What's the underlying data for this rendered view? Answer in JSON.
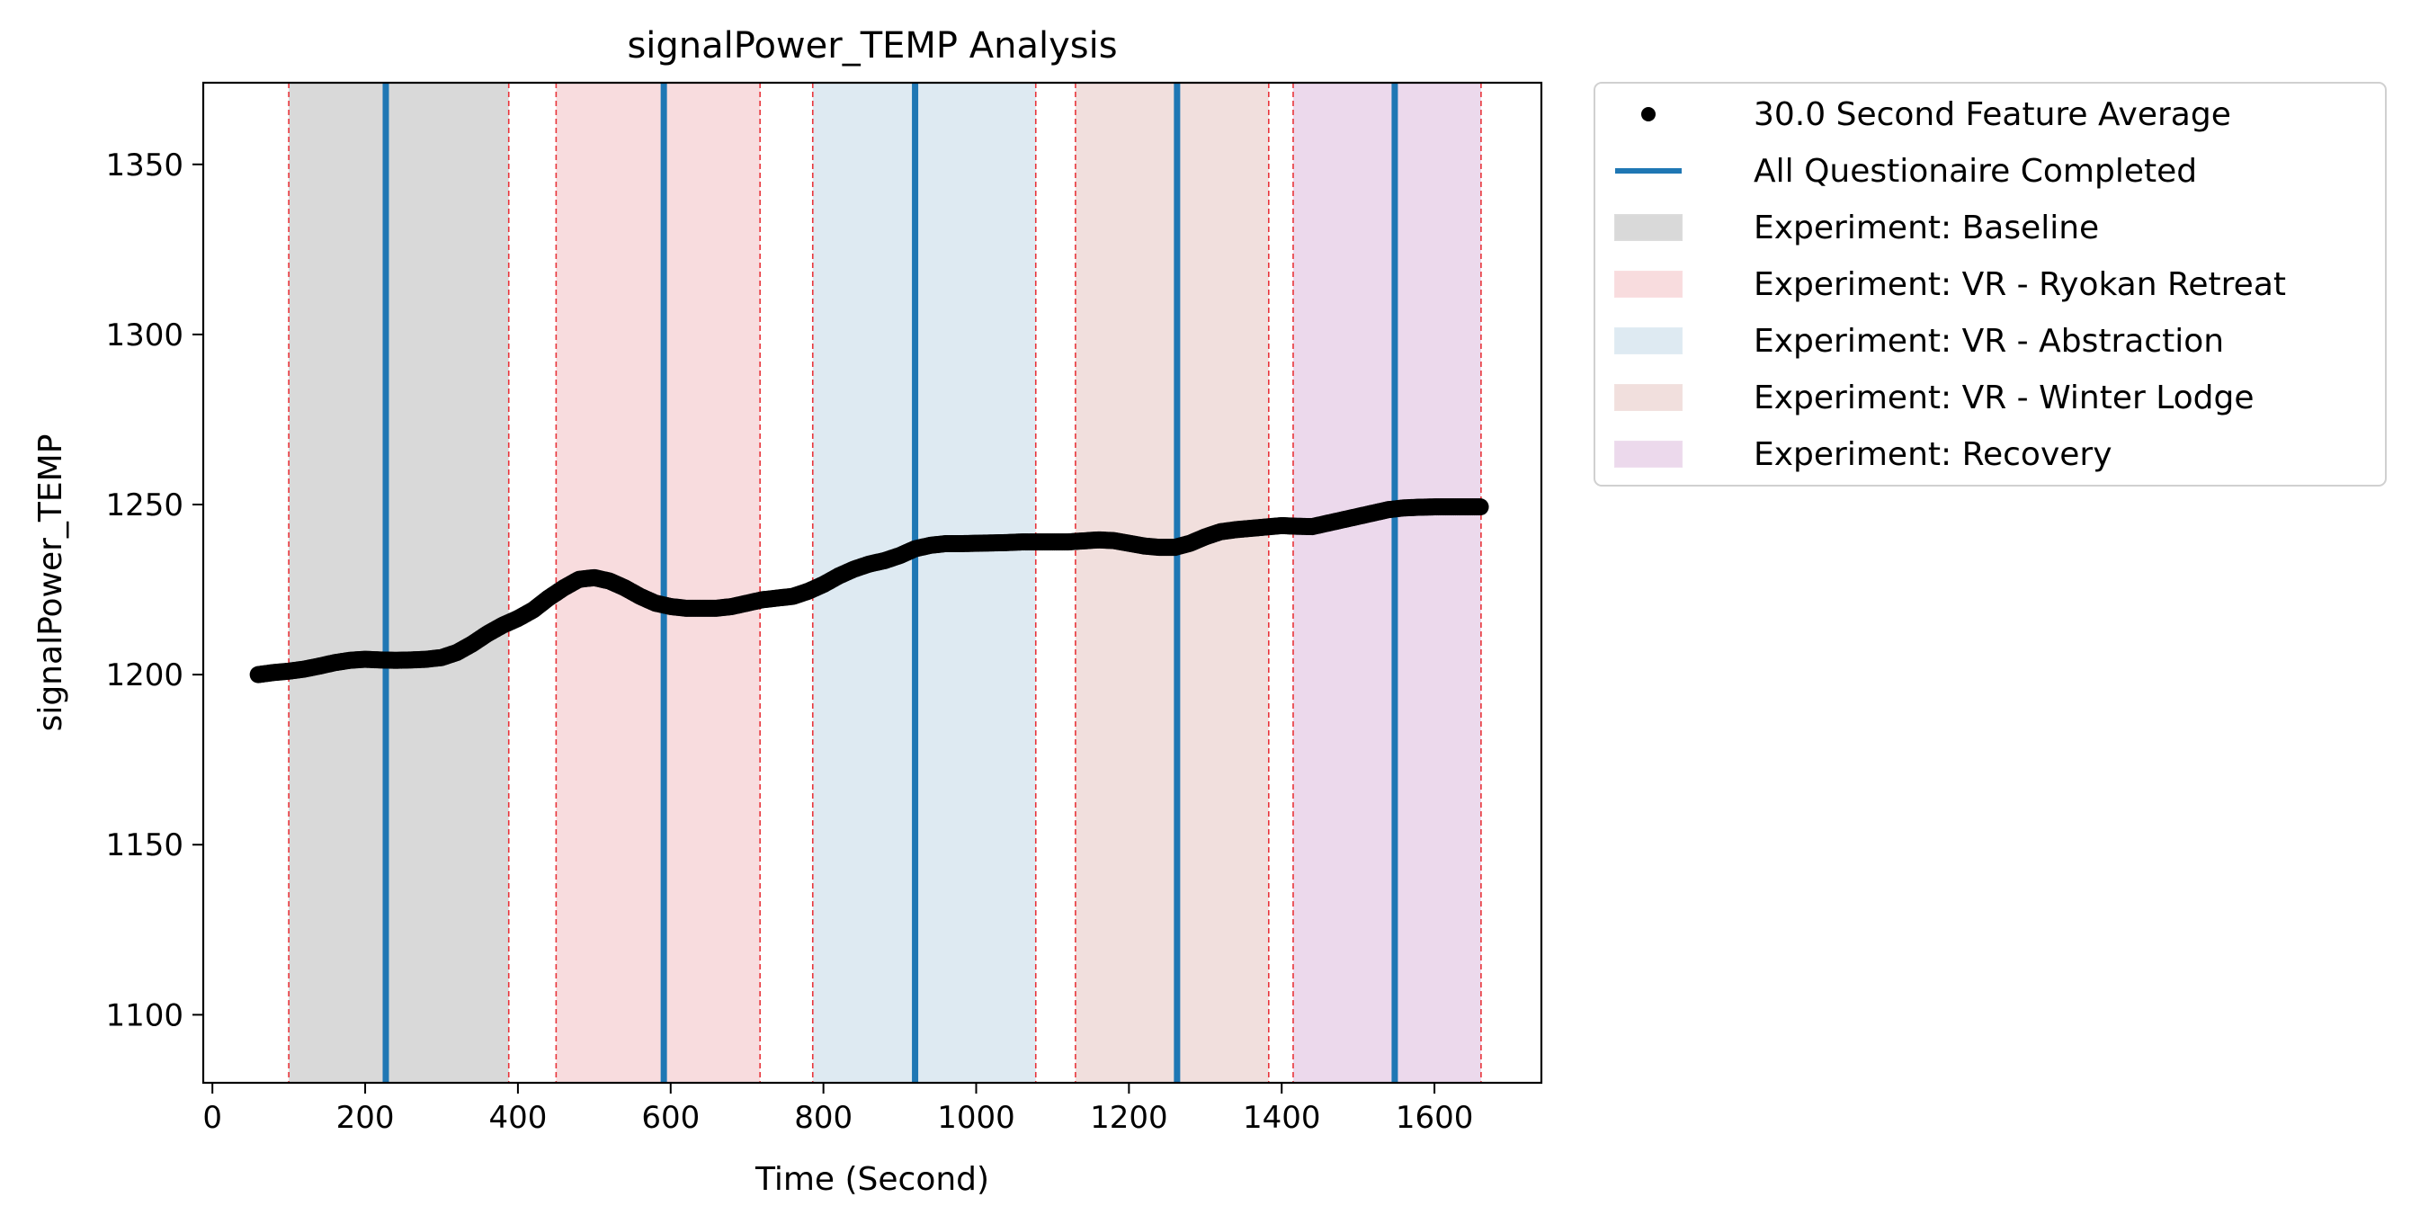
{
  "chart_data": {
    "type": "scatter",
    "title": "signalPower_TEMP Analysis",
    "xlabel": "Time (Second)",
    "ylabel": "signalPower_TEMP",
    "xlim": [
      -12,
      1740
    ],
    "ylim": [
      1080,
      1374
    ],
    "x_ticks": [
      0,
      200,
      400,
      600,
      800,
      1000,
      1200,
      1400,
      1600
    ],
    "y_ticks": [
      1100,
      1150,
      1200,
      1250,
      1300,
      1350
    ],
    "grid": false,
    "legend_position": "outside-right",
    "series": [
      {
        "name": "30.0 Second Feature Average",
        "kind": "markers",
        "color": "#000000",
        "points": [
          [
            60,
            1200
          ],
          [
            80,
            1200.6
          ],
          [
            100,
            1201
          ],
          [
            120,
            1201.6
          ],
          [
            140,
            1202.5
          ],
          [
            160,
            1203.5
          ],
          [
            180,
            1204.2
          ],
          [
            200,
            1204.5
          ],
          [
            220,
            1204.3
          ],
          [
            240,
            1204.2
          ],
          [
            260,
            1204.3
          ],
          [
            280,
            1204.5
          ],
          [
            300,
            1205
          ],
          [
            320,
            1206.5
          ],
          [
            340,
            1209
          ],
          [
            360,
            1212
          ],
          [
            380,
            1214.5
          ],
          [
            400,
            1216.5
          ],
          [
            420,
            1219
          ],
          [
            440,
            1222.5
          ],
          [
            460,
            1225.5
          ],
          [
            480,
            1228
          ],
          [
            500,
            1228.5
          ],
          [
            520,
            1227.5
          ],
          [
            540,
            1225.5
          ],
          [
            560,
            1223
          ],
          [
            580,
            1221
          ],
          [
            600,
            1220
          ],
          [
            620,
            1219.5
          ],
          [
            640,
            1219.5
          ],
          [
            660,
            1219.5
          ],
          [
            680,
            1220
          ],
          [
            700,
            1221
          ],
          [
            720,
            1222
          ],
          [
            740,
            1222.5
          ],
          [
            760,
            1223
          ],
          [
            780,
            1224.5
          ],
          [
            800,
            1226.5
          ],
          [
            820,
            1229
          ],
          [
            840,
            1231
          ],
          [
            860,
            1232.5
          ],
          [
            880,
            1233.5
          ],
          [
            900,
            1235
          ],
          [
            920,
            1237
          ],
          [
            940,
            1238
          ],
          [
            960,
            1238.5
          ],
          [
            980,
            1238.5
          ],
          [
            1000,
            1238.6
          ],
          [
            1020,
            1238.7
          ],
          [
            1040,
            1238.8
          ],
          [
            1060,
            1239
          ],
          [
            1080,
            1239
          ],
          [
            1100,
            1239
          ],
          [
            1120,
            1239
          ],
          [
            1140,
            1239.3
          ],
          [
            1160,
            1239.6
          ],
          [
            1180,
            1239.4
          ],
          [
            1200,
            1238.6
          ],
          [
            1220,
            1237.8
          ],
          [
            1240,
            1237.4
          ],
          [
            1260,
            1237.4
          ],
          [
            1280,
            1238.6
          ],
          [
            1300,
            1240.5
          ],
          [
            1320,
            1242
          ],
          [
            1340,
            1242.6
          ],
          [
            1360,
            1243
          ],
          [
            1380,
            1243.4
          ],
          [
            1400,
            1243.8
          ],
          [
            1420,
            1243.6
          ],
          [
            1440,
            1243.5
          ],
          [
            1460,
            1244.5
          ],
          [
            1480,
            1245.5
          ],
          [
            1500,
            1246.5
          ],
          [
            1520,
            1247.5
          ],
          [
            1540,
            1248.5
          ],
          [
            1560,
            1249
          ],
          [
            1580,
            1249.2
          ],
          [
            1600,
            1249.3
          ],
          [
            1620,
            1249.3
          ],
          [
            1640,
            1249.3
          ],
          [
            1660,
            1249.3
          ]
        ]
      },
      {
        "name": "All Questionaire Completed",
        "kind": "vlines",
        "color": "#1f77b4",
        "x": [
          227,
          591,
          920,
          1263,
          1548
        ]
      }
    ],
    "regions": [
      {
        "name": "Experiment: Baseline",
        "x": [
          100,
          388
        ],
        "color": "#d9d9d9"
      },
      {
        "name": "Experiment: VR - Ryokan Retreat",
        "x": [
          450,
          717
        ],
        "color": "#f8dcde"
      },
      {
        "name": "Experiment: VR - Abstraction",
        "x": [
          786,
          1078
        ],
        "color": "#deeaf2"
      },
      {
        "name": "Experiment: VR - Winter Lodge",
        "x": [
          1130,
          1383
        ],
        "color": "#f1dfdd"
      },
      {
        "name": "Experiment: Recovery",
        "x": [
          1415,
          1661
        ],
        "color": "#ecd9ec"
      }
    ],
    "boundary_line_color": "#e8343a"
  }
}
